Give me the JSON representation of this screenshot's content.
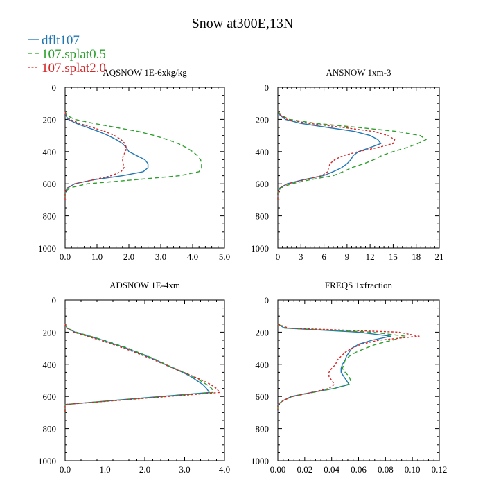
{
  "title": "Snow at300E,13N",
  "legend": [
    {
      "label": "dflt107",
      "color": "#1f77b4",
      "dash": "solid"
    },
    {
      "label": "107.splat0.5",
      "color": "#2ca02c",
      "dash": "dashed"
    },
    {
      "label": "107.splat2.0",
      "color": "#d62728",
      "dash": "dotted"
    }
  ],
  "chart_data": [
    {
      "type": "line",
      "title": "AQSNOW  1E-6xkg/kg",
      "xlim": [
        0,
        5
      ],
      "xticks": [
        0,
        1,
        2,
        3,
        4,
        5
      ],
      "xtick_labels": [
        "0.0",
        "1.0",
        "2.0",
        "3.0",
        "4.0",
        "5.0"
      ],
      "ylim": [
        1000,
        0
      ],
      "yticks": [
        0,
        200,
        400,
        600,
        800,
        1000
      ],
      "ytick_labels": [
        "0",
        "200",
        "400",
        "600",
        "800",
        "1000"
      ],
      "y": [
        150,
        175,
        200,
        225,
        250,
        275,
        300,
        325,
        350,
        375,
        400,
        425,
        450,
        475,
        500,
        525,
        550,
        575,
        600,
        625,
        650,
        675,
        700
      ],
      "series": [
        {
          "name": "dflt107",
          "values": [
            0.0,
            0.02,
            0.1,
            0.35,
            0.7,
            1.05,
            1.35,
            1.6,
            1.8,
            1.92,
            2.0,
            2.25,
            2.5,
            2.6,
            2.6,
            2.45,
            1.8,
            0.9,
            0.3,
            0.08,
            0.0,
            0.0,
            0.0
          ]
        },
        {
          "name": "107.splat0.5",
          "values": [
            0.0,
            0.05,
            0.3,
            0.9,
            1.6,
            2.3,
            2.8,
            3.2,
            3.55,
            3.8,
            4.0,
            4.15,
            4.25,
            4.28,
            4.28,
            4.2,
            3.6,
            2.2,
            0.7,
            0.15,
            0.0,
            0.0,
            0.0
          ]
        },
        {
          "name": "107.splat2.0",
          "values": [
            0.0,
            0.02,
            0.15,
            0.45,
            0.85,
            1.25,
            1.55,
            1.75,
            1.88,
            1.92,
            1.9,
            1.82,
            1.8,
            1.82,
            1.85,
            1.75,
            1.45,
            0.9,
            0.3,
            0.08,
            0.0,
            0.0,
            0.0
          ]
        }
      ]
    },
    {
      "type": "line",
      "title": "ANSNOW  1xm-3",
      "xlim": [
        0,
        21
      ],
      "xticks": [
        0,
        3,
        6,
        9,
        12,
        15,
        18,
        21
      ],
      "xtick_labels": [
        "0",
        "3",
        "6",
        "9",
        "12",
        "15",
        "18",
        "21"
      ],
      "ylim": [
        1000,
        0
      ],
      "yticks": [
        0,
        200,
        400,
        600,
        800,
        1000
      ],
      "ytick_labels": [
        "0",
        "200",
        "400",
        "600",
        "800",
        "1000"
      ],
      "y": [
        150,
        175,
        200,
        225,
        250,
        275,
        300,
        325,
        350,
        375,
        400,
        425,
        450,
        475,
        500,
        525,
        550,
        575,
        600,
        625,
        650,
        675,
        700
      ],
      "series": [
        {
          "name": "dflt107",
          "values": [
            0.0,
            0.3,
            1.0,
            3.0,
            6.5,
            10.0,
            12.0,
            13.0,
            13.4,
            12.0,
            10.5,
            9.8,
            9.5,
            9.0,
            8.3,
            7.2,
            5.9,
            3.3,
            1.2,
            0.3,
            0.0,
            0.0,
            0.0
          ]
        },
        {
          "name": "107.splat0.5",
          "values": [
            0.0,
            0.5,
            1.5,
            5.0,
            10.5,
            15.5,
            18.5,
            19.3,
            18.2,
            16.8,
            15.0,
            13.5,
            12.5,
            11.2,
            9.6,
            8.5,
            7.2,
            4.2,
            1.8,
            0.4,
            0.0,
            0.0,
            0.0
          ]
        },
        {
          "name": "107.splat2.0",
          "values": [
            0.0,
            0.4,
            1.2,
            4.0,
            8.5,
            12.5,
            14.3,
            15.2,
            15.0,
            13.0,
            10.5,
            8.5,
            7.4,
            6.8,
            6.6,
            6.5,
            5.7,
            3.5,
            1.3,
            0.3,
            0.0,
            0.0,
            0.0
          ]
        }
      ]
    },
    {
      "type": "line",
      "title": "ADSNOW  1E-4xm",
      "xlim": [
        0,
        4
      ],
      "xticks": [
        0,
        1,
        2,
        3,
        4
      ],
      "xtick_labels": [
        "0.0",
        "1.0",
        "2.0",
        "3.0",
        "4.0"
      ],
      "ylim": [
        1000,
        0
      ],
      "yticks": [
        0,
        200,
        400,
        600,
        800,
        1000
      ],
      "ytick_labels": [
        "0",
        "200",
        "400",
        "600",
        "800",
        "1000"
      ],
      "y": [
        150,
        175,
        200,
        225,
        250,
        275,
        300,
        325,
        350,
        375,
        400,
        425,
        450,
        475,
        500,
        525,
        550,
        575,
        600,
        625,
        650,
        675,
        700
      ],
      "series": [
        {
          "name": "dflt107",
          "values": [
            0.0,
            0.05,
            0.25,
            0.6,
            0.95,
            1.25,
            1.55,
            1.8,
            2.05,
            2.3,
            2.5,
            2.72,
            2.95,
            3.15,
            3.3,
            3.45,
            3.55,
            3.62,
            2.4,
            1.2,
            0.0,
            0.0,
            0.0
          ]
        },
        {
          "name": "107.splat0.5",
          "values": [
            0.0,
            0.05,
            0.28,
            0.63,
            0.98,
            1.28,
            1.58,
            1.83,
            2.08,
            2.32,
            2.52,
            2.75,
            2.98,
            3.2,
            3.38,
            3.55,
            3.68,
            3.72,
            2.5,
            1.25,
            0.0,
            0.0,
            0.0
          ]
        },
        {
          "name": "107.splat2.0",
          "values": [
            0.0,
            0.04,
            0.22,
            0.55,
            0.88,
            1.18,
            1.48,
            1.75,
            2.0,
            2.25,
            2.48,
            2.72,
            2.98,
            3.22,
            3.45,
            3.65,
            3.8,
            3.88,
            2.6,
            1.3,
            0.0,
            0.0,
            0.0
          ]
        }
      ]
    },
    {
      "type": "line",
      "title": "FREQS  1xfraction",
      "xlim": [
        0,
        0.12
      ],
      "xticks": [
        0,
        0.02,
        0.04,
        0.06,
        0.08,
        0.1,
        0.12
      ],
      "xtick_labels": [
        "0.00",
        "0.02",
        "0.04",
        "0.06",
        "0.08",
        "0.10",
        "0.12"
      ],
      "ylim": [
        1000,
        0
      ],
      "yticks": [
        0,
        200,
        400,
        600,
        800,
        1000
      ],
      "ytick_labels": [
        "0",
        "200",
        "400",
        "600",
        "800",
        "1000"
      ],
      "y": [
        150,
        175,
        200,
        225,
        250,
        275,
        300,
        325,
        350,
        375,
        400,
        425,
        450,
        475,
        500,
        525,
        550,
        575,
        600,
        625,
        650,
        675,
        700
      ],
      "series": [
        {
          "name": "dflt107",
          "values": [
            0.0,
            0.005,
            0.06,
            0.084,
            0.07,
            0.06,
            0.055,
            0.053,
            0.051,
            0.05,
            0.048,
            0.047,
            0.047,
            0.049,
            0.051,
            0.053,
            0.042,
            0.025,
            0.01,
            0.004,
            0.0,
            0.0,
            0.0
          ]
        },
        {
          "name": "107.splat0.5",
          "values": [
            0.0,
            0.006,
            0.07,
            0.095,
            0.085,
            0.073,
            0.065,
            0.058,
            0.053,
            0.05,
            0.049,
            0.048,
            0.05,
            0.053,
            0.054,
            0.052,
            0.042,
            0.026,
            0.011,
            0.004,
            0.0,
            0.0,
            0.0
          ]
        },
        {
          "name": "107.splat2.0",
          "values": [
            0.0,
            0.008,
            0.09,
            0.105,
            0.075,
            0.062,
            0.055,
            0.05,
            0.047,
            0.044,
            0.043,
            0.04,
            0.038,
            0.038,
            0.04,
            0.042,
            0.038,
            0.025,
            0.011,
            0.004,
            0.0,
            0.0,
            0.0
          ]
        }
      ]
    }
  ]
}
